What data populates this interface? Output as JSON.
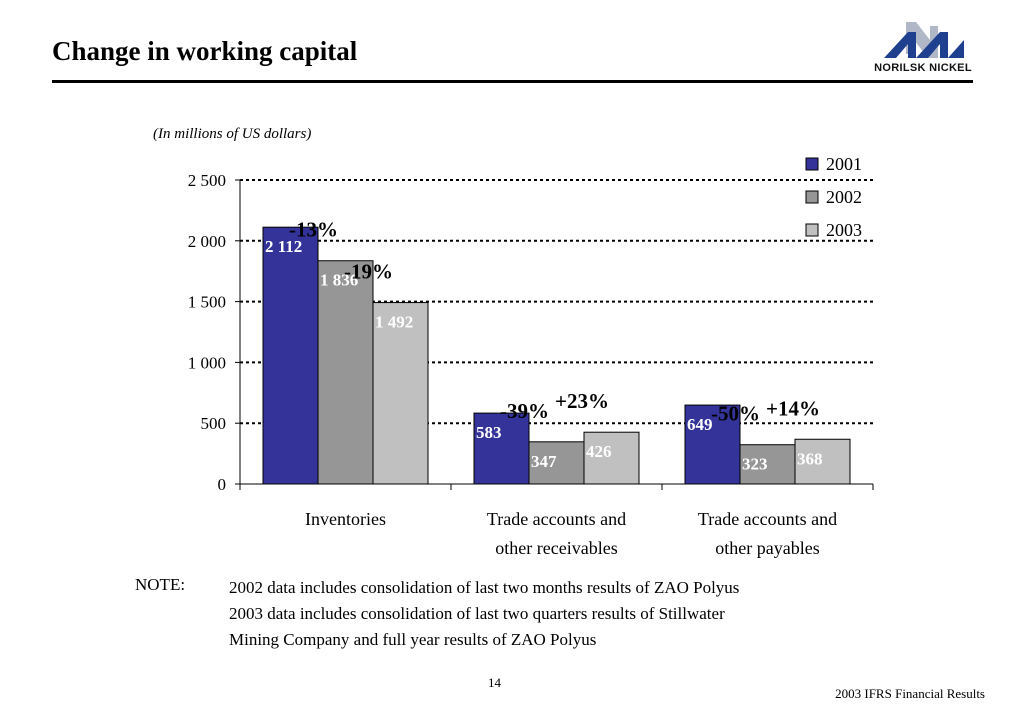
{
  "header": {
    "title": "Change in working capital",
    "logo_text": "NORILSK NICKEL",
    "logo_icon": "norilsk-nickel-logo-icon"
  },
  "units_note": "(In millions of US dollars)",
  "chart_data": {
    "type": "bar",
    "categories": [
      [
        "Inventories"
      ],
      [
        "Trade accounts and",
        "other receivables"
      ],
      [
        "Trade accounts and",
        "other payables"
      ]
    ],
    "series": [
      {
        "name": "2001",
        "values": [
          2112,
          583,
          649
        ],
        "labels": [
          "2 112",
          "583",
          "649"
        ],
        "color": "#333399"
      },
      {
        "name": "2002",
        "values": [
          1836,
          347,
          323
        ],
        "labels": [
          "1 836",
          "347",
          "323"
        ],
        "color": "#969696"
      },
      {
        "name": "2003",
        "values": [
          1492,
          426,
          368
        ],
        "labels": [
          "1 492",
          "426",
          "368"
        ],
        "color": "#c0c0c0"
      }
    ],
    "change_labels": [
      {
        "category": 0,
        "series": 1,
        "text": "-13%"
      },
      {
        "category": 0,
        "series": 2,
        "text": "-19%"
      },
      {
        "category": 1,
        "series": 1,
        "text": "-39%"
      },
      {
        "category": 1,
        "series": 2,
        "text": "+23%"
      },
      {
        "category": 2,
        "series": 1,
        "text": "-50%"
      },
      {
        "category": 2,
        "series": 2,
        "text": "+14%"
      }
    ],
    "y_ticks": [
      0,
      500,
      1000,
      1500,
      2000,
      2500
    ],
    "y_tick_labels": [
      "0",
      "500",
      "1 000",
      "1 500",
      "2 000",
      "2 500"
    ],
    "ylim": [
      0,
      2500
    ],
    "grid": true,
    "legend_position": "top-right"
  },
  "note": {
    "label": "NOTE:",
    "lines": [
      "2002 data includes consolidation of last two months results of ZAO Polyus",
      "2003 data includes consolidation of last two quarters results of Stillwater",
      "Mining Company and full year results of ZAO Polyus"
    ]
  },
  "footer": {
    "page_number": "14",
    "report_name": "2003 IFRS Financial Results"
  }
}
